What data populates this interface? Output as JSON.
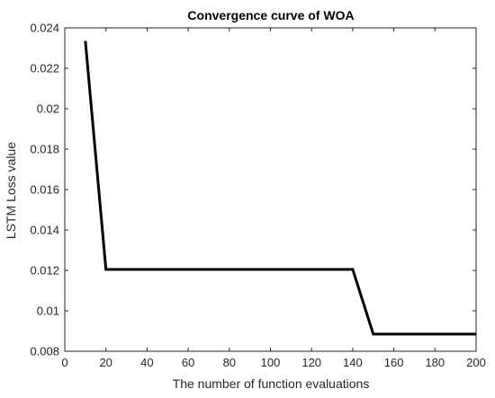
{
  "chart_data": {
    "type": "line",
    "title": "Convergence curve of WOA",
    "xlabel": "The number of function evaluations",
    "ylabel": "LSTM Loss value",
    "xlim": [
      0,
      200
    ],
    "ylim": [
      0.008,
      0.024
    ],
    "x_ticks": [
      "0",
      "20",
      "40",
      "60",
      "80",
      "100",
      "120",
      "140",
      "160",
      "180",
      "200"
    ],
    "x_tick_values": [
      0,
      20,
      40,
      60,
      80,
      100,
      120,
      140,
      160,
      180,
      200
    ],
    "y_ticks": [
      "0.008",
      "0.01",
      "0.012",
      "0.014",
      "0.016",
      "0.018",
      "0.02",
      "0.022",
      "0.024"
    ],
    "y_tick_values": [
      0.008,
      0.01,
      0.012,
      0.014,
      0.016,
      0.018,
      0.02,
      0.022,
      0.024
    ],
    "grid": false,
    "series": [
      {
        "color": "#000000",
        "x": [
          10,
          20,
          30,
          40,
          50,
          60,
          70,
          80,
          90,
          100,
          110,
          120,
          130,
          140,
          150,
          160,
          170,
          180,
          190,
          200
        ],
        "y": [
          0.02335,
          0.01205,
          0.01205,
          0.01205,
          0.01205,
          0.01205,
          0.01205,
          0.01205,
          0.01205,
          0.01205,
          0.01205,
          0.01205,
          0.01205,
          0.01205,
          0.00885,
          0.00885,
          0.00885,
          0.00885,
          0.00885,
          0.00885
        ]
      }
    ]
  }
}
